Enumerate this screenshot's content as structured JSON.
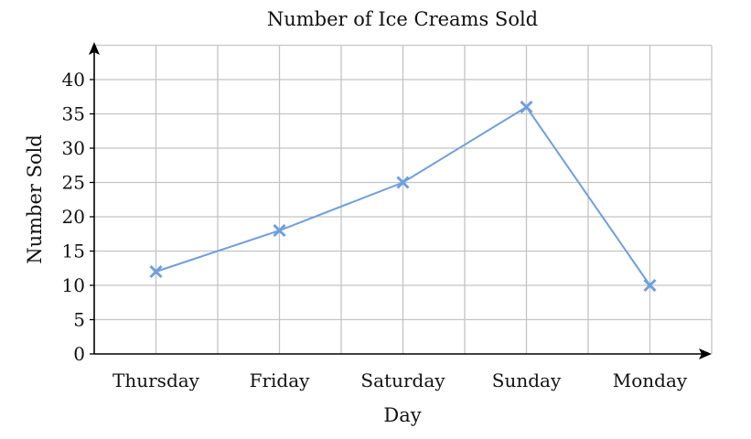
{
  "chart_data": {
    "type": "line",
    "title": "Number of Ice Creams Sold",
    "xlabel": "Day",
    "ylabel": "Number Sold",
    "categories": [
      "Thursday",
      "Friday",
      "Saturday",
      "Sunday",
      "Monday"
    ],
    "series": [
      {
        "name": "Number Sold",
        "values": [
          12,
          18,
          25,
          36,
          10
        ],
        "color": "#6f9fdc",
        "marker": "x"
      }
    ],
    "ylim": [
      0,
      45
    ],
    "yticks": [
      0,
      5,
      10,
      15,
      20,
      25,
      30,
      35,
      40
    ],
    "grid": true
  }
}
